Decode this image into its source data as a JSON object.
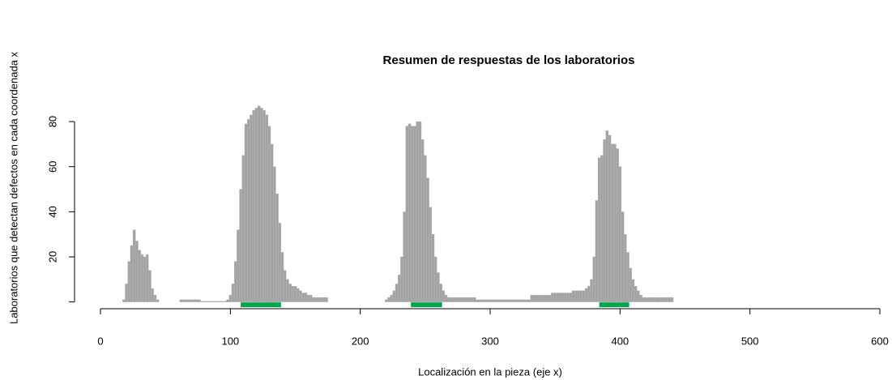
{
  "chart_data": {
    "type": "bar",
    "title": "Resumen de respuestas de los laboratorios",
    "xlabel": "Localización en la pieza (eje x)",
    "ylabel": "Laboratorios que detectan defectos en cada coordenada x",
    "bar_width": 2,
    "color": "#a3a3a3",
    "x": [
      18,
      20,
      22,
      24,
      26,
      28,
      30,
      32,
      34,
      36,
      38,
      40,
      42,
      44,
      62,
      64,
      66,
      68,
      70,
      72,
      74,
      76,
      78,
      80,
      82,
      84,
      86,
      88,
      90,
      92,
      94,
      96,
      98,
      100,
      102,
      104,
      106,
      108,
      110,
      112,
      114,
      116,
      118,
      120,
      122,
      124,
      126,
      128,
      130,
      132,
      134,
      136,
      138,
      140,
      142,
      144,
      146,
      148,
      150,
      152,
      154,
      156,
      158,
      160,
      162,
      164,
      166,
      168,
      170,
      172,
      174,
      220,
      222,
      224,
      226,
      228,
      230,
      232,
      234,
      236,
      238,
      240,
      242,
      244,
      246,
      248,
      250,
      252,
      254,
      256,
      258,
      260,
      262,
      264,
      266,
      268,
      270,
      272,
      274,
      276,
      278,
      280,
      282,
      284,
      286,
      288,
      290,
      292,
      294,
      296,
      298,
      300,
      302,
      304,
      306,
      308,
      310,
      312,
      314,
      316,
      318,
      320,
      322,
      324,
      326,
      328,
      330,
      332,
      334,
      336,
      338,
      340,
      342,
      344,
      346,
      348,
      350,
      352,
      354,
      356,
      358,
      360,
      362,
      364,
      366,
      368,
      370,
      372,
      374,
      376,
      378,
      380,
      382,
      384,
      386,
      388,
      390,
      392,
      394,
      396,
      398,
      400,
      402,
      404,
      406,
      408,
      410,
      412,
      414,
      416,
      418,
      420,
      422,
      424,
      426,
      428,
      430,
      432,
      434,
      436,
      438,
      440
    ],
    "values": [
      1,
      8,
      18,
      25,
      32,
      27,
      23,
      21,
      20,
      21,
      14,
      6,
      3,
      1,
      1,
      1,
      1,
      1,
      1,
      1,
      1,
      1,
      0.3,
      0.3,
      0.3,
      0.3,
      0.3,
      0.3,
      0.3,
      0.3,
      0.3,
      0.3,
      1,
      3,
      8,
      18,
      32,
      50,
      65,
      79,
      81,
      83,
      85,
      86,
      87,
      86,
      85,
      83,
      78,
      70,
      60,
      48,
      35,
      22,
      14,
      10,
      8,
      7,
      7,
      6,
      5,
      4,
      4,
      3,
      3,
      2,
      2,
      2,
      2,
      2,
      2,
      1,
      2,
      3,
      5,
      8,
      12,
      20,
      40,
      78,
      79,
      78,
      78,
      80,
      80,
      72,
      65,
      55,
      42,
      30,
      20,
      13,
      8,
      5,
      3,
      2,
      2,
      2,
      2,
      2,
      2,
      2,
      2,
      2,
      2,
      2,
      1,
      1,
      1,
      1,
      1,
      1,
      1,
      1,
      1,
      1,
      1,
      1,
      1,
      1,
      1,
      1,
      1,
      1,
      1,
      1,
      1,
      3,
      3,
      3,
      3,
      3,
      3,
      3,
      3,
      4,
      4,
      4,
      4,
      4,
      4,
      4,
      4,
      5,
      5,
      5,
      5,
      5,
      6,
      7,
      10,
      20,
      45,
      64,
      65,
      72,
      76,
      74,
      70,
      70,
      68,
      60,
      40,
      30,
      22,
      15,
      10,
      7,
      5,
      3,
      2,
      2,
      2,
      2,
      2,
      2,
      2,
      2,
      2,
      2,
      2,
      2
    ],
    "intervals": [
      {
        "start": 108,
        "end": 139
      },
      {
        "start": 239,
        "end": 263
      },
      {
        "start": 384,
        "end": 407
      }
    ],
    "interval_color": "#00a550",
    "xlim": [
      0,
      600
    ],
    "xticks": [
      0,
      100,
      200,
      300,
      400,
      500,
      600
    ],
    "ylim": [
      -3,
      88
    ],
    "yticks": [
      20,
      40,
      60,
      80
    ]
  }
}
